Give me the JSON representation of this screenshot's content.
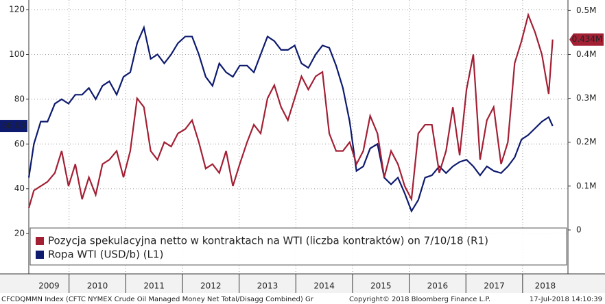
{
  "chart_data": {
    "type": "line",
    "x": [
      2009.29,
      2009.38,
      2009.5,
      2009.62,
      2009.75,
      2009.87,
      2009.99,
      2010.11,
      2010.23,
      2010.35,
      2010.47,
      2010.59,
      2010.71,
      2010.84,
      2010.96,
      2011.08,
      2011.2,
      2011.32,
      2011.44,
      2011.56,
      2011.68,
      2011.8,
      2011.92,
      2012.05,
      2012.17,
      2012.29,
      2012.41,
      2012.53,
      2012.65,
      2012.77,
      2012.89,
      2013.01,
      2013.14,
      2013.26,
      2013.38,
      2013.5,
      2013.62,
      2013.74,
      2013.86,
      2013.98,
      2014.1,
      2014.22,
      2014.35,
      2014.47,
      2014.59,
      2014.71,
      2014.83,
      2014.95,
      2015.07,
      2015.19,
      2015.31,
      2015.44,
      2015.56,
      2015.68,
      2015.8,
      2015.92,
      2016.04,
      2016.16,
      2016.28,
      2016.4,
      2016.53,
      2016.65,
      2016.77,
      2016.89,
      2017.01,
      2017.13,
      2017.25,
      2017.37,
      2017.49,
      2017.62,
      2017.74,
      2017.86,
      2017.98,
      2018.1,
      2018.22,
      2018.34,
      2018.46,
      2018.53
    ],
    "series": [
      {
        "name": "Pozycja spekulacyjna netto w kontraktach na WTI (liczba kontraktów) on 7/10/18 (R1)",
        "color": "#a31f34",
        "axis": "y2",
        "values": [
          0.05,
          0.09,
          0.1,
          0.11,
          0.13,
          0.18,
          0.1,
          0.15,
          0.07,
          0.12,
          0.08,
          0.15,
          0.16,
          0.18,
          0.12,
          0.18,
          0.3,
          0.28,
          0.18,
          0.16,
          0.2,
          0.19,
          0.22,
          0.23,
          0.25,
          0.2,
          0.14,
          0.15,
          0.13,
          0.18,
          0.1,
          0.15,
          0.2,
          0.24,
          0.22,
          0.3,
          0.33,
          0.28,
          0.25,
          0.3,
          0.35,
          0.32,
          0.35,
          0.36,
          0.22,
          0.18,
          0.18,
          0.2,
          0.15,
          0.18,
          0.26,
          0.22,
          0.12,
          0.18,
          0.15,
          0.1,
          0.07,
          0.22,
          0.24,
          0.24,
          0.13,
          0.18,
          0.28,
          0.17,
          0.32,
          0.4,
          0.16,
          0.25,
          0.28,
          0.15,
          0.2,
          0.38,
          0.43,
          0.49,
          0.45,
          0.4,
          0.31,
          0.434
        ],
        "value_labels": {
          "77": "0.434M"
        }
      },
      {
        "name": "Ropa WTI (USD/b) (L1)",
        "color": "#0d1a6e",
        "values": [
          45,
          60,
          70,
          70,
          78,
          80,
          78,
          82,
          82,
          85,
          80,
          86,
          88,
          82,
          90,
          92,
          105,
          112,
          98,
          100,
          96,
          100,
          105,
          108,
          108,
          100,
          90,
          86,
          96,
          92,
          90,
          95,
          95,
          92,
          100,
          108,
          106,
          102,
          102,
          104,
          96,
          94,
          100,
          104,
          103,
          95,
          85,
          70,
          48,
          50,
          58,
          60,
          45,
          42,
          45,
          38,
          30,
          35,
          45,
          46,
          50,
          47,
          50,
          52,
          53,
          50,
          46,
          50,
          48,
          47,
          50,
          54,
          62,
          64,
          67,
          70,
          72,
          68.03
        ]
      }
    ],
    "xlim": [
      2009.29,
      2018.8
    ],
    "xticks": [
      2009,
      2010,
      2011,
      2012,
      2013,
      2014,
      2015,
      2016,
      2017,
      2018
    ],
    "ylim": [
      2,
      124.3
    ],
    "yticks": [
      20,
      40,
      60,
      80,
      100,
      120
    ],
    "y2lim": [
      -0.1,
      0.524
    ],
    "y2ticks": [
      0,
      {
        "value": 0.1,
        "label": "0.1M"
      },
      {
        "value": 0.2,
        "label": "0.2M"
      },
      {
        "value": 0.3,
        "label": "0.3M"
      },
      {
        "value": 0.4,
        "label": "0.4M"
      },
      {
        "value": 0.5,
        "label": "0.5M"
      }
    ],
    "grid": true,
    "footer": {
      "left": "CFCDQMMN Index (CFTC NYMEX Crude Oil Managed Money Net Total/Disagg Combined) Gr",
      "center": "Copyright© 2018 Bloomberg Finance L.P.",
      "right": "17-Jul-2018 14:10:39"
    }
  }
}
